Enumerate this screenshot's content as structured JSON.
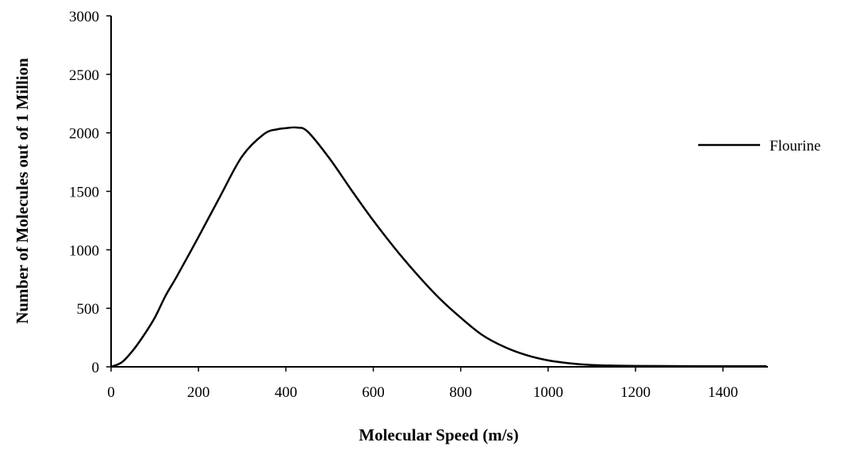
{
  "chart_data": {
    "type": "line",
    "title": "",
    "xlabel": "Molecular Speed (m/s)",
    "ylabel": "Number of Molecules out of 1 Million",
    "xlim": [
      0,
      1500
    ],
    "ylim": [
      0,
      3000
    ],
    "x_ticks": [
      0,
      200,
      400,
      600,
      800,
      1000,
      1200,
      1400
    ],
    "y_ticks": [
      0,
      500,
      1000,
      1500,
      2000,
      2500,
      3000
    ],
    "grid": false,
    "legend_position": "right",
    "series": [
      {
        "name": "Flourine",
        "color": "#000000",
        "x": [
          0,
          25,
          50,
          75,
          100,
          125,
          150,
          200,
          250,
          300,
          350,
          380,
          400,
          425,
          450,
          500,
          550,
          600,
          650,
          700,
          750,
          800,
          850,
          900,
          950,
          1000,
          1050,
          1100,
          1150,
          1200,
          1300,
          1400,
          1500
        ],
        "y": [
          0,
          40,
          140,
          270,
          420,
          610,
          770,
          1110,
          1460,
          1800,
          1990,
          2030,
          2040,
          2045,
          2010,
          1780,
          1510,
          1250,
          1010,
          790,
          590,
          420,
          270,
          170,
          100,
          55,
          30,
          15,
          10,
          8,
          6,
          5,
          5
        ]
      }
    ]
  }
}
